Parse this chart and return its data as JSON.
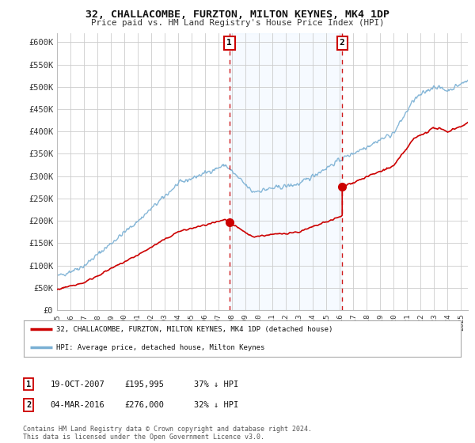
{
  "title": "32, CHALLACOMBE, FURZTON, MILTON KEYNES, MK4 1DP",
  "subtitle": "Price paid vs. HM Land Registry's House Price Index (HPI)",
  "background_color": "#ffffff",
  "plot_bg_color": "#ffffff",
  "shade_color": "#ddeeff",
  "ylabel_ticks": [
    "£0",
    "£50K",
    "£100K",
    "£150K",
    "£200K",
    "£250K",
    "£300K",
    "£350K",
    "£400K",
    "£450K",
    "£500K",
    "£550K",
    "£600K"
  ],
  "ytick_values": [
    0,
    50000,
    100000,
    150000,
    200000,
    250000,
    300000,
    350000,
    400000,
    450000,
    500000,
    550000,
    600000
  ],
  "ylim": [
    0,
    620000
  ],
  "xlim_start": 1995.0,
  "xlim_end": 2025.5,
  "marker1_x": 2007.8,
  "marker1_y": 195995,
  "marker1_label": "19-OCT-2007",
  "marker1_price": "£195,995",
  "marker1_pct": "37% ↓ HPI",
  "marker2_x": 2016.17,
  "marker2_y": 276000,
  "marker2_label": "04-MAR-2016",
  "marker2_price": "£276,000",
  "marker2_pct": "32% ↓ HPI",
  "legend_line1": "32, CHALLACOMBE, FURZTON, MILTON KEYNES, MK4 1DP (detached house)",
  "legend_line2": "HPI: Average price, detached house, Milton Keynes",
  "footer": "Contains HM Land Registry data © Crown copyright and database right 2024.\nThis data is licensed under the Open Government Licence v3.0.",
  "red_line_color": "#cc0000",
  "blue_line_color": "#7ab0d4",
  "dashed_line_color": "#cc0000",
  "grid_color": "#cccccc",
  "xtick_years": [
    1995,
    1996,
    1997,
    1998,
    1999,
    2000,
    2001,
    2002,
    2003,
    2004,
    2005,
    2006,
    2007,
    2008,
    2009,
    2010,
    2011,
    2012,
    2013,
    2014,
    2015,
    2016,
    2017,
    2018,
    2019,
    2020,
    2021,
    2022,
    2023,
    2024,
    2025
  ]
}
